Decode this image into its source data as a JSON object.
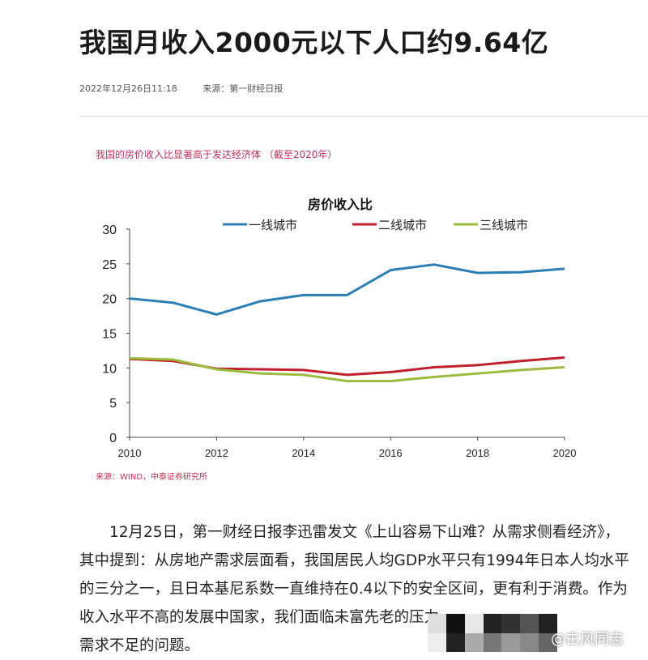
{
  "article": {
    "title": "我国月收入2000元以下人口约9.64亿",
    "date": "2022年12月26日11:18",
    "source": "来源：第一财经日报",
    "paragraph": [
      "12月25日，第一财经日报李迅雷发文《上山容易下山难？从需求侧看经济》，",
      "其中提到：从房地产需求层面看，我国居民人均GDP水平只有1994年日本人均水平",
      "的三分之一，且日本基尼系数一直维持在0.4以下的安全区间，更有利于消费。作为",
      "收入水平不高的发展中国家，我们面临未富先老的压力，",
      "需求不足的问题。"
    ],
    "watermark": "@古风同志"
  },
  "chart_data": {
    "type": "line",
    "subtitle": "我国的房价收入比显著高于发达经济体 （截至2020年）",
    "title": "房价收入比",
    "source": "来源：WIND，中泰证券研究所",
    "x": [
      2010,
      2011,
      2012,
      2013,
      2014,
      2015,
      2016,
      2017,
      2018,
      2019,
      2020
    ],
    "xticks": [
      "2010",
      "2012",
      "2014",
      "2016",
      "2018",
      "2020"
    ],
    "yticks": [
      "0",
      "5",
      "10",
      "15",
      "20",
      "25",
      "30"
    ],
    "ylim": [
      0,
      30
    ],
    "xlim": [
      2010,
      2020
    ],
    "grid": false,
    "legend": "top",
    "series": [
      {
        "name": "一线城市",
        "color": "#2a7db5",
        "values": [
          20.0,
          19.4,
          17.7,
          19.6,
          20.5,
          20.5,
          24.1,
          24.9,
          23.7,
          23.8,
          24.3
        ]
      },
      {
        "name": "二线城市",
        "color": "#c0202e",
        "values": [
          11.3,
          11.0,
          9.9,
          9.8,
          9.7,
          9.0,
          9.4,
          10.1,
          10.4,
          11.0,
          11.5
        ]
      },
      {
        "name": "三线城市",
        "color": "#9bbb3c",
        "values": [
          11.4,
          11.2,
          9.8,
          9.2,
          9.0,
          8.1,
          8.1,
          8.7,
          9.2,
          9.7,
          10.1
        ]
      }
    ]
  }
}
